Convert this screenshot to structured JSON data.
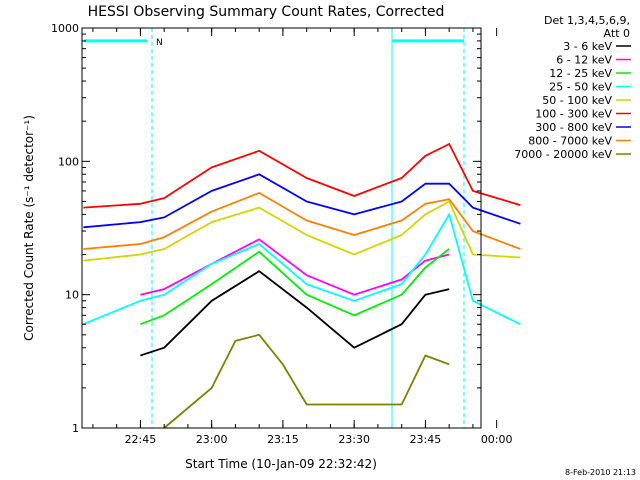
{
  "chart_data": {
    "type": "line",
    "title": "HESSI Observing Summary Count Rates, Corrected",
    "xlabel": "Start Time (10-Jan-09 22:32:42)",
    "ylabel": "Corrected Count Rate (s⁻¹ detector⁻¹)",
    "yscale": "log",
    "ylim": [
      1,
      1000
    ],
    "y_ticks": [
      "1",
      "10",
      "100",
      "1000"
    ],
    "x_ticks": [
      "22:45",
      "23:00",
      "23:15",
      "23:30",
      "23:45",
      "00:00"
    ],
    "legend": {
      "placement": "right",
      "header": [
        "Det 1,3,4,5,6,9,",
        "Att 0"
      ]
    },
    "night_flag_label": "N",
    "timestamp": "8-Feb-2010 21:13",
    "series": [
      {
        "name": "3 - 6 keV",
        "color": "#000000",
        "x": [
          "22:45",
          "22:50",
          "23:00",
          "23:10",
          "23:20",
          "23:30",
          "23:40",
          "23:45",
          "23:50"
        ],
        "values": [
          3.5,
          4,
          9,
          15,
          8,
          4,
          6,
          10,
          11
        ]
      },
      {
        "name": "6 - 12 keV",
        "color": "#ff00ff",
        "x": [
          "22:45",
          "22:50",
          "23:00",
          "23:10",
          "23:20",
          "23:30",
          "23:40",
          "23:45",
          "23:50"
        ],
        "values": [
          10,
          11,
          17,
          26,
          14,
          10,
          13,
          18,
          20
        ]
      },
      {
        "name": "12 - 25 keV",
        "color": "#00ee00",
        "x": [
          "22:45",
          "22:50",
          "23:00",
          "23:10",
          "23:20",
          "23:30",
          "23:40",
          "23:45",
          "23:50"
        ],
        "values": [
          6,
          7,
          12,
          21,
          10,
          7,
          10,
          16,
          22
        ]
      },
      {
        "name": "25 - 50 keV",
        "color": "#00ffff",
        "x": [
          "22:33",
          "22:45",
          "22:50",
          "23:00",
          "23:10",
          "23:20",
          "23:30",
          "23:40",
          "23:45",
          "23:50",
          "23:55",
          "00:05"
        ],
        "values": [
          6,
          9,
          10,
          17,
          24,
          12,
          9,
          12,
          20,
          40,
          9,
          6
        ]
      },
      {
        "name": "50 - 100 keV",
        "color": "#d4d400",
        "x": [
          "22:33",
          "22:45",
          "22:50",
          "23:00",
          "23:10",
          "23:20",
          "23:30",
          "23:40",
          "23:45",
          "23:50",
          "23:55",
          "00:05"
        ],
        "values": [
          18,
          20,
          22,
          35,
          45,
          28,
          20,
          28,
          40,
          50,
          20,
          19
        ]
      },
      {
        "name": "100 - 300 keV",
        "color": "#ff0000",
        "x": [
          "22:33",
          "22:45",
          "22:50",
          "23:00",
          "23:10",
          "23:20",
          "23:30",
          "23:40",
          "23:45",
          "23:50",
          "23:55",
          "00:05"
        ],
        "values": [
          45,
          48,
          53,
          90,
          120,
          75,
          55,
          75,
          110,
          135,
          60,
          47
        ]
      },
      {
        "name": "300 - 800 keV",
        "color": "#0000ff",
        "x": [
          "22:33",
          "22:45",
          "22:50",
          "23:00",
          "23:10",
          "23:20",
          "23:30",
          "23:40",
          "23:45",
          "23:50",
          "23:55",
          "00:05"
        ],
        "values": [
          32,
          35,
          38,
          60,
          80,
          50,
          40,
          50,
          68,
          68,
          45,
          34
        ]
      },
      {
        "name": "800 - 7000 keV",
        "color": "#ff8000",
        "x": [
          "22:33",
          "22:45",
          "22:50",
          "23:00",
          "23:10",
          "23:20",
          "23:30",
          "23:40",
          "23:45",
          "23:50",
          "23:55",
          "00:05"
        ],
        "values": [
          22,
          24,
          27,
          42,
          58,
          36,
          28,
          36,
          48,
          52,
          30,
          22
        ]
      },
      {
        "name": "7000 - 20000 keV",
        "color": "#808000",
        "x": [
          "22:50",
          "23:00",
          "23:05",
          "23:10",
          "23:15",
          "23:20",
          "23:40",
          "23:45",
          "23:50"
        ],
        "values": [
          1,
          2,
          4.5,
          5,
          3,
          1.5,
          1.5,
          3.5,
          3
        ]
      }
    ]
  }
}
